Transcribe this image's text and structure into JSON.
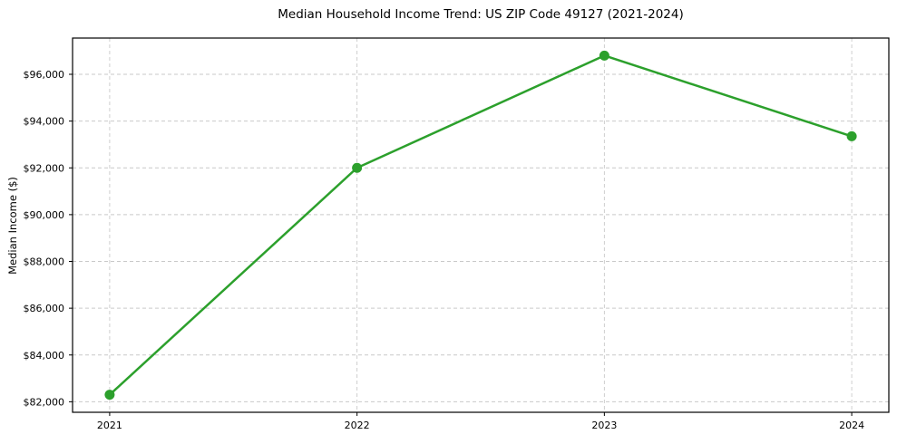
{
  "chart_data": {
    "type": "line",
    "title": "Median Household Income Trend: US ZIP Code 49127 (2021-2024)",
    "xlabel": "",
    "ylabel": "Median Income ($)",
    "categories": [
      "2021",
      "2022",
      "2023",
      "2024"
    ],
    "x_values": [
      2021,
      2022,
      2023,
      2024
    ],
    "values": [
      82300,
      92000,
      96800,
      93350
    ],
    "y_ticks": [
      {
        "value": 82000,
        "label": "$82,000"
      },
      {
        "value": 84000,
        "label": "$84,000"
      },
      {
        "value": 86000,
        "label": "$86,000"
      },
      {
        "value": 88000,
        "label": "$88,000"
      },
      {
        "value": 90000,
        "label": "$90,000"
      },
      {
        "value": 92000,
        "label": "$92,000"
      },
      {
        "value": 94000,
        "label": "$94,000"
      },
      {
        "value": 96000,
        "label": "$96,000"
      }
    ],
    "xlim": [
      2020.85,
      2024.15
    ],
    "ylim": [
      81550,
      97550
    ],
    "line_color": "#2ca02c",
    "marker": "circle",
    "grid": "dashed-both",
    "legend": "none",
    "background": "#ffffff"
  }
}
